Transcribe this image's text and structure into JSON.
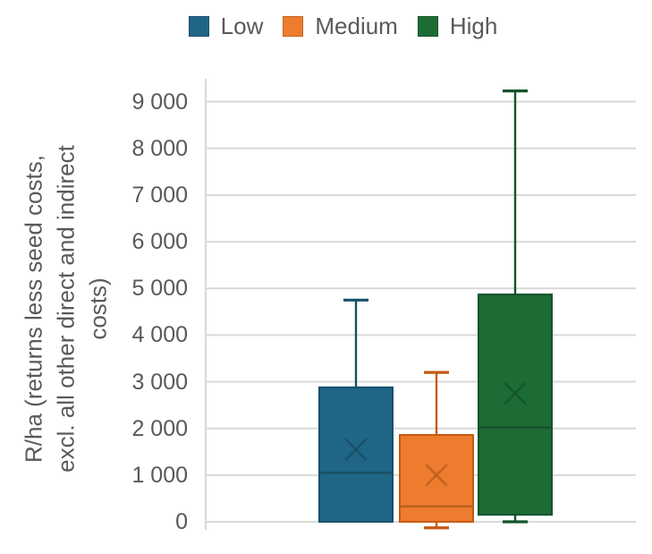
{
  "chart_data": {
    "type": "boxplot",
    "title": "",
    "xlabel": "",
    "ylabel": "R/ha (returns less seed costs, excl. all other direct and indirect costs)",
    "ylabel_lines": [
      "R/ha (returns less seed costs,",
      "excl. all other direct and indirect",
      "costs)"
    ],
    "ylim": [
      -200,
      9500
    ],
    "y_ticks": [
      0,
      1000,
      2000,
      3000,
      4000,
      5000,
      6000,
      7000,
      8000,
      9000
    ],
    "y_tick_labels": [
      "0",
      "1 000",
      "2 000",
      "3 000",
      "4 000",
      "5 000",
      "6 000",
      "7 000",
      "8 000",
      "9 000"
    ],
    "grid": true,
    "grid_color": "#D9D9D9",
    "text_color": "#595959",
    "legend_position": "top",
    "series": [
      {
        "name": "Low",
        "fill": "#1F6586",
        "stroke": "#174F6B",
        "dark": "#1A4C63",
        "min": 0,
        "q1": 0,
        "median": 1050,
        "mean": 1550,
        "q3": 2880,
        "max": 4750
      },
      {
        "name": "Medium",
        "fill": "#ED7C2F",
        "stroke": "#C55A11",
        "dark": "#B65A1E",
        "min": -130,
        "q1": 0,
        "median": 330,
        "mean": 1000,
        "q3": 1860,
        "max": 3200
      },
      {
        "name": "High",
        "fill": "#1D6B35",
        "stroke": "#14532D",
        "dark": "#14502C",
        "min": 0,
        "q1": 150,
        "median": 2020,
        "mean": 2750,
        "q3": 4870,
        "max": 9230
      }
    ]
  }
}
